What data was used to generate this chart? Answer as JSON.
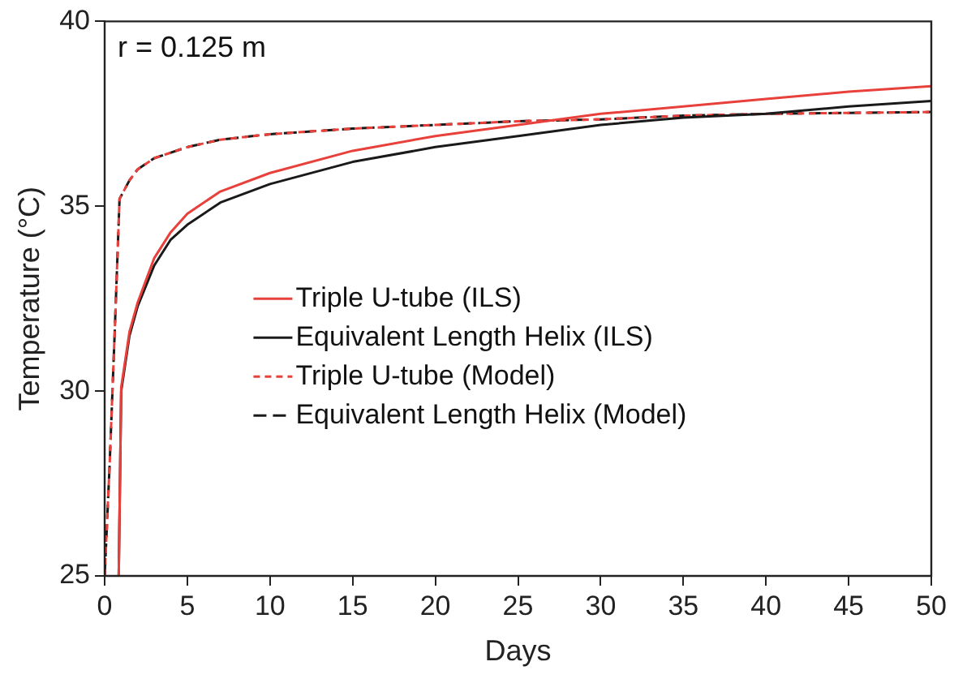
{
  "chart_data": {
    "type": "line",
    "xlabel": "Days",
    "ylabel": "Temperature (°C)",
    "xlim": [
      0,
      50
    ],
    "ylim": [
      25,
      40
    ],
    "xticks": [
      0,
      5,
      10,
      15,
      20,
      25,
      30,
      35,
      40,
      45,
      50
    ],
    "yticks": [
      25,
      30,
      35,
      40
    ],
    "grid": false,
    "legend": "center",
    "marker": "none",
    "annotations": [
      "r = 0.125 m"
    ],
    "series": [
      {
        "name": "Triple U-tube (ILS)",
        "color": "#e8403a",
        "line_style": "solid",
        "x": [
          0.85,
          1,
          1.5,
          2,
          3,
          4,
          5,
          7,
          10,
          15,
          20,
          25,
          30,
          35,
          40,
          45,
          50
        ],
        "values": [
          25,
          30.1,
          31.6,
          32.4,
          33.6,
          34.3,
          34.8,
          35.4,
          35.9,
          36.5,
          36.9,
          37.2,
          37.5,
          37.7,
          37.9,
          38.1,
          38.25
        ]
      },
      {
        "name": "Equivalent Length Helix (ILS)",
        "color": "#1a1a1a",
        "line_style": "solid",
        "x": [
          0.85,
          1,
          1.5,
          2,
          3,
          4,
          5,
          7,
          10,
          15,
          20,
          25,
          30,
          35,
          40,
          45,
          50
        ],
        "values": [
          25,
          30.0,
          31.5,
          32.3,
          33.4,
          34.1,
          34.5,
          35.1,
          35.6,
          36.2,
          36.6,
          36.9,
          37.2,
          37.4,
          37.5,
          37.7,
          37.85
        ]
      },
      {
        "name": "Triple U-tube (Model)",
        "color": "#e8403a",
        "line_style": "dotted",
        "x": [
          0,
          0.3,
          0.6,
          0.9,
          1.5,
          2,
          3,
          5,
          7,
          10,
          15,
          20,
          25,
          30,
          35,
          40,
          50
        ],
        "values": [
          25,
          28,
          31.5,
          35.2,
          35.7,
          36.0,
          36.3,
          36.6,
          36.8,
          36.95,
          37.1,
          37.2,
          37.3,
          37.35,
          37.45,
          37.5,
          37.55
        ]
      },
      {
        "name": "Equivalent Length Helix (Model)",
        "color": "#1a1a1a",
        "line_style": "dashed",
        "x": [
          0,
          0.3,
          0.6,
          0.9,
          1.5,
          2,
          3,
          5,
          7,
          10,
          15,
          20,
          25,
          30,
          35,
          40,
          50
        ],
        "values": [
          25,
          28,
          31.5,
          35.2,
          35.7,
          36.0,
          36.3,
          36.6,
          36.8,
          36.95,
          37.1,
          37.2,
          37.3,
          37.35,
          37.45,
          37.5,
          37.55
        ]
      }
    ]
  }
}
